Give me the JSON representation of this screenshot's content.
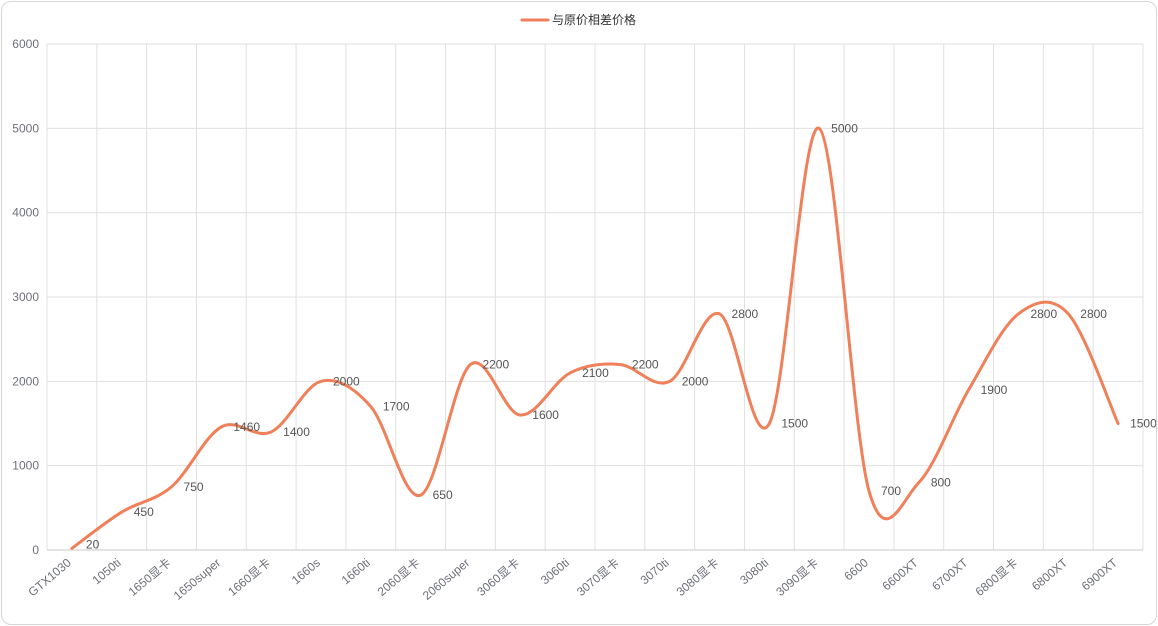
{
  "chart_data": {
    "type": "line",
    "smooth": true,
    "categories": [
      "GTX1030",
      "1050ti",
      "1650显卡",
      "1650super",
      "1660显卡",
      "1660s",
      "1660ti",
      "2060显卡",
      "2060super",
      "3060显卡",
      "3060ti",
      "3070显卡",
      "3070ti",
      "3080显卡",
      "3080ti",
      "3090显卡",
      "6600",
      "6600XT",
      "6700XT",
      "6800显卡",
      "6800XT",
      "6900XT"
    ],
    "series": [
      {
        "name": "与原价相差价格",
        "color": "#f0805a",
        "values": [
          20,
          450,
          750,
          1460,
          1400,
          2000,
          1700,
          650,
          2200,
          1600,
          2100,
          2200,
          2000,
          2800,
          1500,
          5000,
          700,
          800,
          1900,
          2800,
          2800,
          1500
        ]
      }
    ],
    "ylim": [
      0,
      6000
    ],
    "yticks": [
      0,
      1000,
      2000,
      3000,
      4000,
      5000,
      6000
    ],
    "grid": true,
    "legend_position": "top-center",
    "data_labels": true
  }
}
